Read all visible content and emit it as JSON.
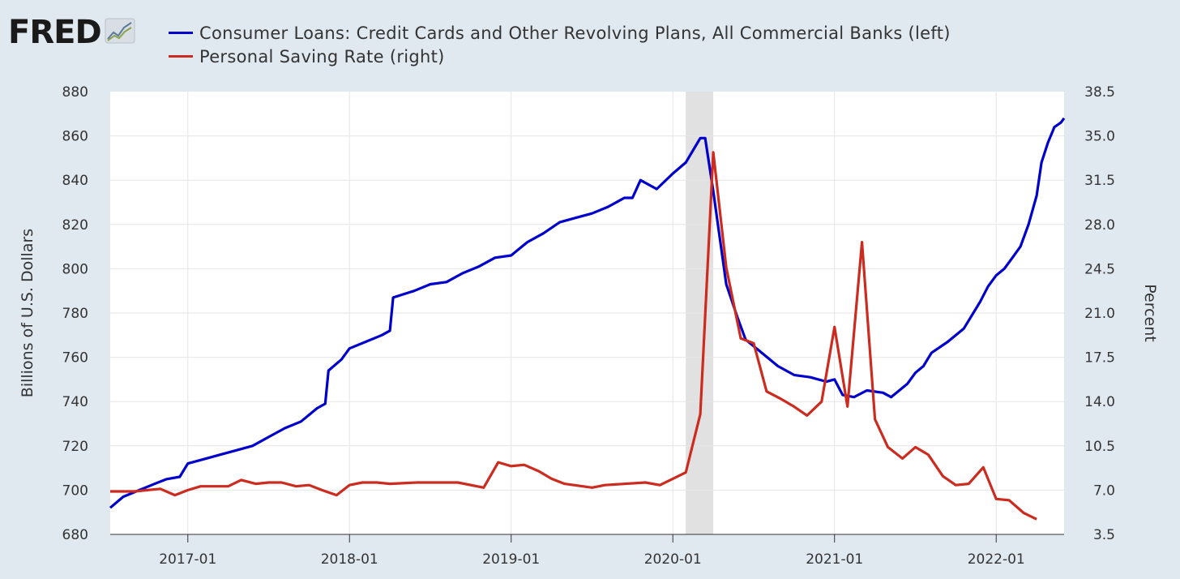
{
  "logo": {
    "text": "FRED",
    "icon": "trend-chart-icon"
  },
  "chart_data": {
    "type": "line",
    "x_ticks": [
      {
        "label": "2017-01",
        "t": 2017.0
      },
      {
        "label": "2018-01",
        "t": 2018.0
      },
      {
        "label": "2019-01",
        "t": 2019.0
      },
      {
        "label": "2020-01",
        "t": 2020.0
      },
      {
        "label": "2021-01",
        "t": 2021.0
      },
      {
        "label": "2022-01",
        "t": 2022.0
      }
    ],
    "xlim": [
      2016.52,
      2022.42
    ],
    "y_left": {
      "label": "Billions of U.S. Dollars",
      "lim": [
        680,
        880
      ],
      "ticks": [
        "680",
        "700",
        "720",
        "740",
        "760",
        "780",
        "800",
        "820",
        "840",
        "860",
        "880"
      ]
    },
    "y_right": {
      "label": "Percent",
      "lim": [
        3.5,
        38.5
      ],
      "ticks": [
        "3.5",
        "7.0",
        "10.5",
        "14.0",
        "17.5",
        "21.0",
        "24.5",
        "28.0",
        "31.5",
        "35.0",
        "38.5"
      ]
    },
    "recession": [
      2020.08,
      2020.25
    ],
    "series": [
      {
        "name": "Consumer Loans: Credit Cards and Other Revolving Plans, All Commercial Banks (left)",
        "axis": "left",
        "color": "#0000cc",
        "points": [
          [
            2016.52,
            692
          ],
          [
            2016.6,
            697
          ],
          [
            2016.7,
            700
          ],
          [
            2016.8,
            703
          ],
          [
            2016.87,
            705
          ],
          [
            2016.95,
            706
          ],
          [
            2017.0,
            712
          ],
          [
            2017.1,
            714
          ],
          [
            2017.2,
            716
          ],
          [
            2017.3,
            718
          ],
          [
            2017.4,
            720
          ],
          [
            2017.5,
            724
          ],
          [
            2017.6,
            728
          ],
          [
            2017.7,
            731
          ],
          [
            2017.8,
            737
          ],
          [
            2017.85,
            739
          ],
          [
            2017.87,
            754
          ],
          [
            2017.95,
            759
          ],
          [
            2018.0,
            764
          ],
          [
            2018.1,
            767
          ],
          [
            2018.2,
            770
          ],
          [
            2018.25,
            772
          ],
          [
            2018.27,
            787
          ],
          [
            2018.4,
            790
          ],
          [
            2018.5,
            793
          ],
          [
            2018.6,
            794
          ],
          [
            2018.7,
            798
          ],
          [
            2018.8,
            801
          ],
          [
            2018.9,
            805
          ],
          [
            2019.0,
            806
          ],
          [
            2019.1,
            812
          ],
          [
            2019.2,
            816
          ],
          [
            2019.3,
            821
          ],
          [
            2019.4,
            823
          ],
          [
            2019.5,
            825
          ],
          [
            2019.6,
            828
          ],
          [
            2019.7,
            832
          ],
          [
            2019.75,
            832
          ],
          [
            2019.8,
            840
          ],
          [
            2019.9,
            836
          ],
          [
            2020.0,
            843
          ],
          [
            2020.08,
            848
          ],
          [
            2020.17,
            859
          ],
          [
            2020.2,
            859
          ],
          [
            2020.25,
            835
          ],
          [
            2020.33,
            793
          ],
          [
            2020.4,
            778
          ],
          [
            2020.45,
            768
          ],
          [
            2020.55,
            762
          ],
          [
            2020.65,
            756
          ],
          [
            2020.75,
            752
          ],
          [
            2020.85,
            751
          ],
          [
            2020.95,
            749
          ],
          [
            2021.0,
            750
          ],
          [
            2021.05,
            743
          ],
          [
            2021.12,
            742
          ],
          [
            2021.2,
            745
          ],
          [
            2021.3,
            744
          ],
          [
            2021.35,
            742
          ],
          [
            2021.45,
            748
          ],
          [
            2021.5,
            753
          ],
          [
            2021.55,
            756
          ],
          [
            2021.6,
            762
          ],
          [
            2021.7,
            767
          ],
          [
            2021.8,
            773
          ],
          [
            2021.9,
            785
          ],
          [
            2021.95,
            792
          ],
          [
            2022.0,
            797
          ],
          [
            2022.05,
            800
          ],
          [
            2022.1,
            805
          ],
          [
            2022.15,
            810
          ],
          [
            2022.2,
            820
          ],
          [
            2022.25,
            833
          ],
          [
            2022.28,
            848
          ],
          [
            2022.32,
            857
          ],
          [
            2022.36,
            864
          ],
          [
            2022.4,
            866
          ],
          [
            2022.42,
            868
          ]
        ]
      },
      {
        "name": "Personal Saving Rate (right)",
        "axis": "right",
        "color": "#cc2b1f",
        "points": [
          [
            2016.52,
            6.9
          ],
          [
            2016.67,
            6.9
          ],
          [
            2016.83,
            7.1
          ],
          [
            2016.92,
            6.6
          ],
          [
            2017.0,
            7.0
          ],
          [
            2017.08,
            7.3
          ],
          [
            2017.25,
            7.3
          ],
          [
            2017.33,
            7.8
          ],
          [
            2017.42,
            7.5
          ],
          [
            2017.5,
            7.6
          ],
          [
            2017.58,
            7.6
          ],
          [
            2017.67,
            7.3
          ],
          [
            2017.75,
            7.4
          ],
          [
            2017.83,
            7.0
          ],
          [
            2017.92,
            6.6
          ],
          [
            2018.0,
            7.4
          ],
          [
            2018.08,
            7.6
          ],
          [
            2018.17,
            7.6
          ],
          [
            2018.25,
            7.5
          ],
          [
            2018.42,
            7.6
          ],
          [
            2018.67,
            7.6
          ],
          [
            2018.83,
            7.2
          ],
          [
            2018.92,
            9.2
          ],
          [
            2019.0,
            8.9
          ],
          [
            2019.08,
            9.0
          ],
          [
            2019.17,
            8.5
          ],
          [
            2019.25,
            7.9
          ],
          [
            2019.33,
            7.5
          ],
          [
            2019.5,
            7.2
          ],
          [
            2019.58,
            7.4
          ],
          [
            2019.83,
            7.6
          ],
          [
            2019.92,
            7.4
          ],
          [
            2020.0,
            7.9
          ],
          [
            2020.08,
            8.4
          ],
          [
            2020.17,
            13.0
          ],
          [
            2020.25,
            33.7
          ],
          [
            2020.33,
            24.6
          ],
          [
            2020.42,
            19.0
          ],
          [
            2020.5,
            18.6
          ],
          [
            2020.58,
            14.8
          ],
          [
            2020.67,
            14.2
          ],
          [
            2020.75,
            13.6
          ],
          [
            2020.83,
            12.9
          ],
          [
            2020.92,
            14.0
          ],
          [
            2021.0,
            19.9
          ],
          [
            2021.08,
            13.6
          ],
          [
            2021.17,
            26.6
          ],
          [
            2021.25,
            12.6
          ],
          [
            2021.33,
            10.4
          ],
          [
            2021.42,
            9.5
          ],
          [
            2021.5,
            10.4
          ],
          [
            2021.58,
            9.8
          ],
          [
            2021.67,
            8.1
          ],
          [
            2021.75,
            7.4
          ],
          [
            2021.83,
            7.5
          ],
          [
            2021.92,
            8.8
          ],
          [
            2022.0,
            6.3
          ],
          [
            2022.08,
            6.2
          ],
          [
            2022.17,
            5.2
          ],
          [
            2022.25,
            4.7
          ]
        ]
      }
    ]
  }
}
